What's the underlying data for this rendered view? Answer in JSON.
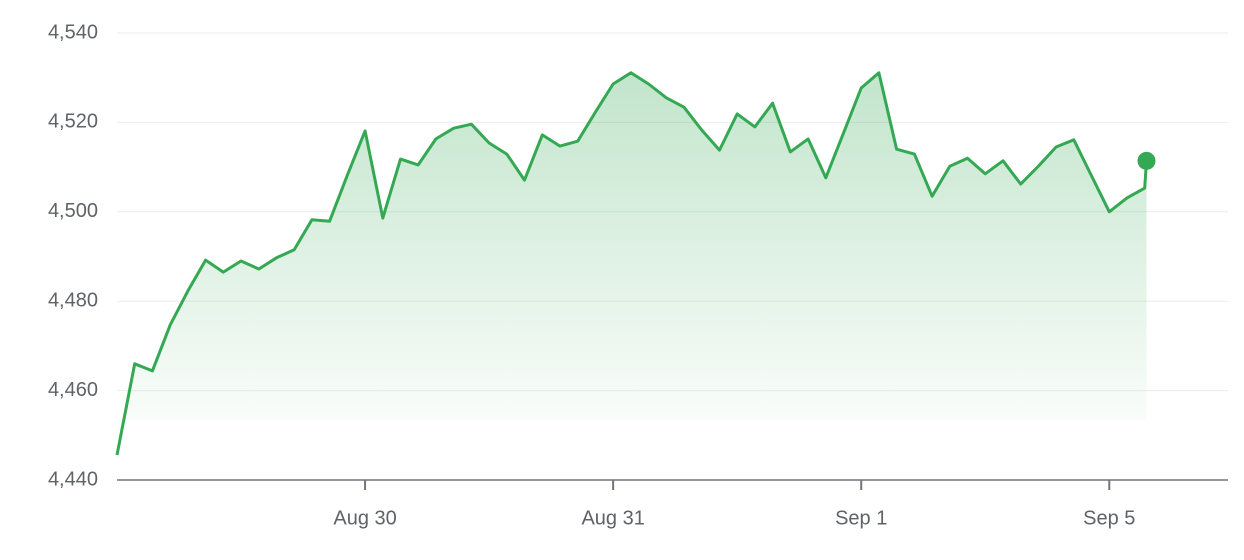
{
  "chart_data": {
    "type": "line",
    "x": [
      0,
      1,
      2,
      3,
      4,
      5,
      6,
      7,
      8,
      9,
      10,
      11,
      12,
      13,
      14,
      15,
      16,
      17,
      18,
      19,
      20,
      21,
      22,
      23,
      24,
      25,
      26,
      27,
      28,
      29,
      30,
      31,
      32,
      33,
      34,
      35,
      36,
      37,
      38,
      39,
      40,
      41,
      42,
      43,
      44,
      45,
      46,
      47,
      48,
      49,
      50,
      51,
      52,
      53,
      54,
      55,
      56,
      57,
      58,
      58.1
    ],
    "series": [
      {
        "color": "#34a853",
        "values": [
          4445.6,
          4466.0,
          4464.4,
          4474.7,
          4482.3,
          4489.2,
          4486.5,
          4489.0,
          4487.2,
          4489.7,
          4491.5,
          4498.2,
          4497.9,
          4508.2,
          4518.1,
          4498.6,
          4511.8,
          4510.5,
          4516.3,
          4518.7,
          4519.6,
          4515.4,
          4512.9,
          4507.1,
          4517.2,
          4514.7,
          4515.8,
          4522.3,
          4528.6,
          4531.1,
          4528.6,
          4525.5,
          4523.4,
          4518.3,
          4513.8,
          4521.9,
          4519.0,
          4524.3,
          4513.4,
          4516.3,
          4507.6,
          4517.6,
          4527.7,
          4531.1,
          4514.0,
          4512.9,
          4503.5,
          4510.2,
          4512.0,
          4508.5,
          4511.4,
          4506.2,
          4510.2,
          4514.5,
          4516.1,
          4508.0,
          4500.0,
          4503.1,
          4505.3,
          4511.4
        ]
      }
    ],
    "xlim": [
      0,
      62.7
    ],
    "xticks": [
      {
        "value": 14,
        "label": "Aug 30"
      },
      {
        "value": 28,
        "label": "Aug 31"
      },
      {
        "value": 42,
        "label": "Sep 1"
      },
      {
        "value": 56,
        "label": "Sep 5"
      }
    ],
    "ylim": [
      4440,
      4540
    ],
    "yticks": [
      {
        "value": 4440,
        "label": "4,440"
      },
      {
        "value": 4460,
        "label": "4,460"
      },
      {
        "value": 4480,
        "label": "4,480"
      },
      {
        "value": 4500,
        "label": "4,500"
      },
      {
        "value": 4520,
        "label": "4,520"
      },
      {
        "value": 4540,
        "label": "4,540"
      }
    ],
    "grid": true
  }
}
